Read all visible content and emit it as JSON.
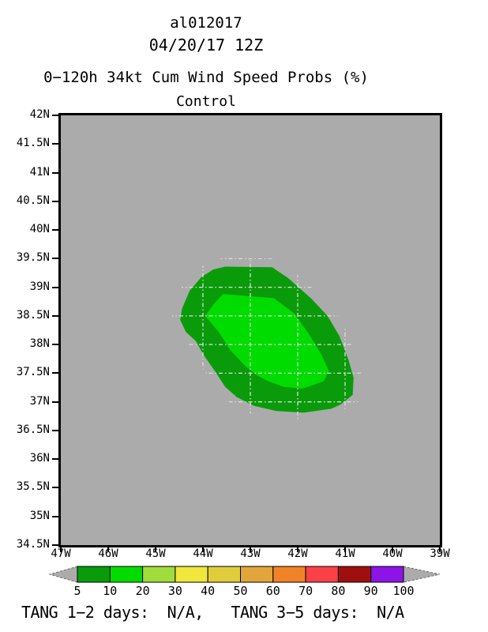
{
  "header": {
    "storm_id": "al012017",
    "init_time": "04/20/17 12Z",
    "product_title": "0−120h 34kt Cum Wind Speed Probs (%)",
    "ensemble_member": "Control"
  },
  "footer": {
    "tang_line": "TANG 1−2 days:  N/A,   TANG 3−5 days:  N/A"
  },
  "chart_data": {
    "type": "filled_contour_map",
    "title": "0−120h 34kt Cum Wind Speed Probs (%)",
    "subtitle": "Control",
    "map": {
      "background_color": "#ABABAB",
      "border_color": "#000000",
      "lon_west": 47,
      "lon_east": 39,
      "lat_north": 42,
      "lat_south": 34.5,
      "lat_tick_labels": [
        {
          "value": 42,
          "label": "42N"
        },
        {
          "value": 41.5,
          "label": "41.5N"
        },
        {
          "value": 41,
          "label": "41N"
        },
        {
          "value": 40.5,
          "label": "40.5N"
        },
        {
          "value": 40,
          "label": "40N"
        },
        {
          "value": 39.5,
          "label": "39.5N"
        },
        {
          "value": 39,
          "label": "39N"
        },
        {
          "value": 38.5,
          "label": "38.5N"
        },
        {
          "value": 38,
          "label": "38N"
        },
        {
          "value": 37.5,
          "label": "37.5N"
        },
        {
          "value": 37,
          "label": "37N"
        },
        {
          "value": 36.5,
          "label": "36.5N"
        },
        {
          "value": 36,
          "label": "36N"
        },
        {
          "value": 35.5,
          "label": "35.5N"
        },
        {
          "value": 35,
          "label": "35N"
        },
        {
          "value": 34.5,
          "label": "34.5N"
        }
      ],
      "lon_tick_labels": [
        {
          "value": 47,
          "label": "47W"
        },
        {
          "value": 46,
          "label": "46W"
        },
        {
          "value": 45,
          "label": "45W"
        },
        {
          "value": 44,
          "label": "44W"
        },
        {
          "value": 43,
          "label": "43W"
        },
        {
          "value": 42,
          "label": "42W"
        },
        {
          "value": 41,
          "label": "41W"
        },
        {
          "value": 40,
          "label": "40W"
        },
        {
          "value": 39,
          "label": "39W"
        }
      ],
      "gridline_color": "#DCDCDC",
      "gridline_lons_w": [
        46,
        45,
        44,
        43,
        42,
        41,
        40
      ],
      "gridline_lats_n": [
        41.5,
        41,
        40.5,
        40,
        39.5,
        39,
        38.5,
        38,
        37.5,
        37,
        36.5,
        36,
        35.5,
        35
      ]
    },
    "contours": [
      {
        "level_percent": 5,
        "color": "#0A9B0A",
        "polygon_lat_lonW": [
          [
            39.36,
            43.53
          ],
          [
            39.35,
            42.54
          ],
          [
            39.16,
            42.2
          ],
          [
            38.8,
            41.71
          ],
          [
            38.5,
            41.37
          ],
          [
            38.15,
            41.12
          ],
          [
            37.74,
            40.93
          ],
          [
            37.42,
            40.82
          ],
          [
            37.12,
            40.84
          ],
          [
            36.95,
            41.1
          ],
          [
            36.88,
            41.29
          ],
          [
            36.81,
            41.87
          ],
          [
            36.84,
            42.45
          ],
          [
            36.93,
            42.92
          ],
          [
            37.08,
            43.28
          ],
          [
            37.26,
            43.53
          ],
          [
            37.54,
            43.75
          ],
          [
            37.81,
            43.98
          ],
          [
            38.06,
            44.15
          ],
          [
            38.22,
            44.36
          ],
          [
            38.43,
            44.48
          ],
          [
            38.63,
            44.44
          ],
          [
            38.94,
            44.28
          ],
          [
            39.18,
            44.03
          ],
          [
            39.31,
            43.78
          ]
        ]
      },
      {
        "level_percent": 10,
        "color": "#00DC00",
        "polygon_lat_lonW": [
          [
            38.88,
            43.58
          ],
          [
            38.81,
            42.5
          ],
          [
            38.54,
            42.07
          ],
          [
            38.18,
            41.76
          ],
          [
            37.84,
            41.51
          ],
          [
            37.54,
            41.34
          ],
          [
            37.36,
            41.45
          ],
          [
            37.28,
            41.72
          ],
          [
            37.23,
            41.9
          ],
          [
            37.26,
            42.29
          ],
          [
            37.36,
            42.62
          ],
          [
            37.47,
            42.87
          ],
          [
            37.62,
            43.1
          ],
          [
            37.9,
            43.42
          ],
          [
            38.2,
            43.65
          ],
          [
            38.5,
            43.95
          ],
          [
            38.7,
            43.78
          ]
        ]
      }
    ],
    "colorbar": {
      "values": [
        "5",
        "10",
        "20",
        "30",
        "40",
        "50",
        "60",
        "70",
        "80",
        "90",
        "100"
      ],
      "cell_colors": [
        "#0A9B0A",
        "#00DC00",
        "#A0DC3C",
        "#F0E63C",
        "#E1CD3C",
        "#E1A53C",
        "#F08228",
        "#FA4146",
        "#A00F0F",
        "#8C14E6"
      ],
      "arrow_color": "#ABABAB"
    }
  }
}
